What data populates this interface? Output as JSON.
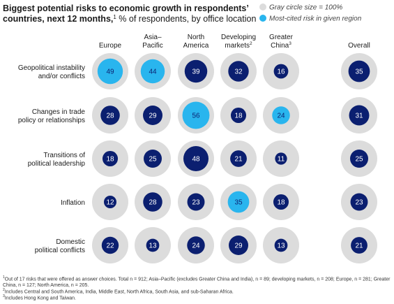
{
  "title": {
    "bold": "Biggest potential risks to economic growth in respondents’ countries, next 12 months,",
    "sup": "1",
    "regular": " % of respondents, by office location"
  },
  "legend": {
    "gray": "Gray circle size = 100%",
    "blue": "Most-cited risk in given region"
  },
  "colors": {
    "gray": "#dcdcdc",
    "navy": "#0b1f70",
    "highlight": "#29b5ee",
    "text": "#1a1a1a"
  },
  "chart_data": {
    "type": "bubble-matrix",
    "columns": [
      {
        "lines": [
          "Europe"
        ],
        "sup": ""
      },
      {
        "lines": [
          "Asia–",
          "Pacific"
        ],
        "sup": ""
      },
      {
        "lines": [
          "North",
          "America"
        ],
        "sup": ""
      },
      {
        "lines": [
          "Developing",
          "markets"
        ],
        "sup": "2"
      },
      {
        "lines": [
          "Greater",
          "China"
        ],
        "sup": "3"
      },
      {
        "lines": [
          "Overall"
        ],
        "sup": ""
      }
    ],
    "rows": [
      {
        "lines": [
          "Geopolitical instability",
          "and/or conflicts"
        ],
        "values": [
          49,
          44,
          39,
          32,
          16,
          35
        ],
        "highlight": [
          true,
          true,
          false,
          false,
          false,
          false
        ]
      },
      {
        "lines": [
          "Changes in trade",
          "policy or relationships"
        ],
        "values": [
          28,
          29,
          56,
          18,
          24,
          31
        ],
        "highlight": [
          false,
          false,
          true,
          false,
          true,
          false
        ]
      },
      {
        "lines": [
          "Transitions of",
          "political leadership"
        ],
        "values": [
          18,
          25,
          48,
          21,
          11,
          25
        ],
        "highlight": [
          false,
          false,
          false,
          false,
          false,
          false
        ]
      },
      {
        "lines": [
          "Inflation"
        ],
        "values": [
          12,
          28,
          23,
          35,
          18,
          23
        ],
        "highlight": [
          false,
          false,
          false,
          true,
          false,
          false
        ]
      },
      {
        "lines": [
          "Domestic",
          "political conflicts"
        ],
        "values": [
          22,
          13,
          24,
          29,
          13,
          21
        ],
        "highlight": [
          false,
          false,
          false,
          false,
          false,
          false
        ]
      }
    ],
    "max_value": 100
  },
  "footnotes": [
    {
      "sup": "1",
      "text": "Out of 17 risks that were offered as answer choices. Total n = 912; Asia–Pacific (excludes Greater China and India), n = 89; developing markets, n = 208; Europe, n = 281; Greater China, n = 127; North America, n = 205."
    },
    {
      "sup": "2",
      "text": "Includes Central and South America, India, Middle East, North Africa, South Asia, and sub-Saharan Africa."
    },
    {
      "sup": "3",
      "text": "Includes Hong Kong and Taiwan."
    }
  ]
}
